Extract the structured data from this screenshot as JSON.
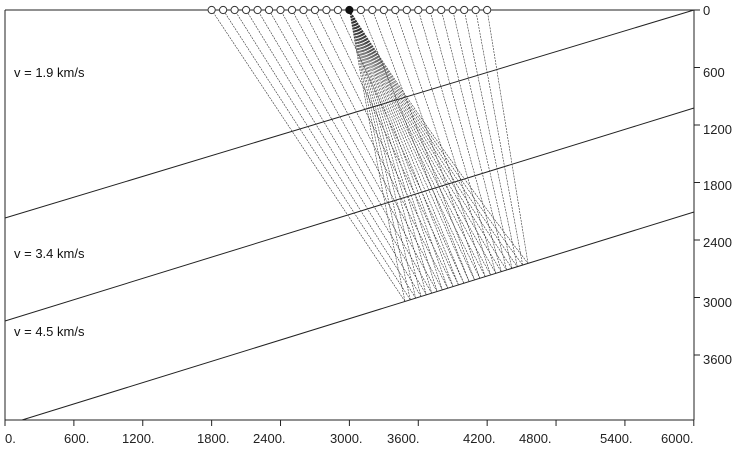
{
  "figure": {
    "x_ticks": [
      "0.",
      "600.",
      "1200.",
      "1800.",
      "2400.",
      "3000.",
      "3600.",
      "4200.",
      "4800.",
      "5400.",
      "6000."
    ],
    "y_ticks": [
      "0",
      "600",
      "1200",
      "1800",
      "2400",
      "3000",
      "3600"
    ],
    "layers": [
      {
        "label": "v = 1.9 km/s"
      },
      {
        "label": "v = 3.4 km/s"
      },
      {
        "label": "v = 4.5 km/s"
      }
    ],
    "source_x_m": 3000,
    "receiver_x_m": [
      1800,
      1900,
      2000,
      2100,
      2200,
      2300,
      2400,
      2500,
      2600,
      2700,
      2800,
      2900,
      3100,
      3200,
      3300,
      3400,
      3500,
      3600,
      3700,
      3800,
      3900,
      4000,
      4100,
      4200
    ],
    "line_color": "#222222",
    "ray_color": "#333333"
  }
}
